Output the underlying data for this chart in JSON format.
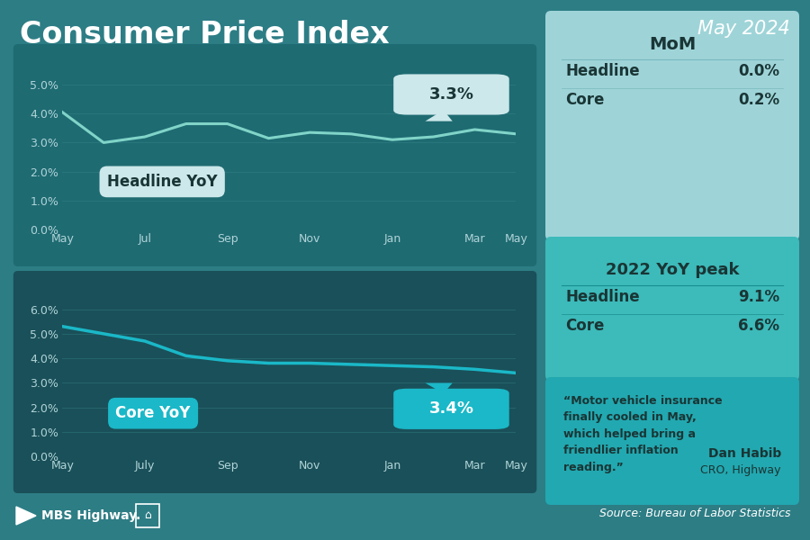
{
  "title": "Consumer Price Index",
  "subtitle": "May 2024",
  "bg_color": "#2d7d85",
  "chart1_bg": "#1f6b72",
  "chart2_bg": "#1a5059",
  "headline_x_labels": [
    "May",
    "Jul",
    "Sep",
    "Nov",
    "Jan",
    "Mar",
    "May"
  ],
  "headline_y": [
    4.05,
    3.0,
    3.2,
    3.65,
    3.65,
    3.15,
    3.35,
    3.3,
    3.1,
    3.2,
    3.45,
    3.3
  ],
  "headline_x": [
    0,
    1,
    2,
    3,
    4,
    5,
    6,
    7,
    8,
    9,
    10,
    11
  ],
  "headline_label": "Headline YoY",
  "headline_end_val": "3.3%",
  "headline_color": "#80d4c8",
  "headline_ylim": [
    0.0,
    5.5
  ],
  "headline_yticks": [
    0.0,
    1.0,
    2.0,
    3.0,
    4.0,
    5.0
  ],
  "headline_ytick_labels": [
    "0.0%",
    "1.0%",
    "2.0%",
    "3.0%",
    "4.0%",
    "5.0%"
  ],
  "core_x_labels": [
    "May",
    "July",
    "Sep",
    "Nov",
    "Jan",
    "Mar",
    "May"
  ],
  "core_y": [
    5.3,
    5.0,
    4.7,
    4.1,
    3.9,
    3.8,
    3.8,
    3.75,
    3.7,
    3.65,
    3.55,
    3.4
  ],
  "core_x": [
    0,
    1,
    2,
    3,
    4,
    5,
    6,
    7,
    8,
    9,
    10,
    11
  ],
  "core_label": "Core YoY",
  "core_end_val": "3.4%",
  "core_color": "#1ab8c8",
  "core_ylim": [
    0.0,
    6.5
  ],
  "core_yticks": [
    0.0,
    1.0,
    2.0,
    3.0,
    4.0,
    5.0,
    6.0
  ],
  "core_ytick_labels": [
    "0.0%",
    "1.0%",
    "2.0%",
    "3.0%",
    "4.0%",
    "5.0%",
    "6.0%"
  ],
  "mom_title": "MoM",
  "mom_headline_label": "Headline",
  "mom_headline_val": "0.0%",
  "mom_core_label": "Core",
  "mom_core_val": "0.2%",
  "mom_bg": "#9ed4d8",
  "peak_title": "2022 YoY peak",
  "peak_headline_label": "Headline",
  "peak_headline_val": "9.1%",
  "peak_core_label": "Core",
  "peak_core_val": "6.6%",
  "peak_bg": "#3dbaba",
  "quote_text": "“Motor vehicle insurance\nfinally cooled in May,\nwhich helped bring a\nfriendlier inflation\nreading.”",
  "quote_author": "Dan Habib",
  "quote_role": "CRO, Highway",
  "quote_bg": "#22a8b0",
  "source": "Source: Bureau of Labor Statistics",
  "tick_color": "#b0d4d8",
  "grid_color": "#3a8a90",
  "label_dark": "#1a3535",
  "text_white": "#ffffff"
}
